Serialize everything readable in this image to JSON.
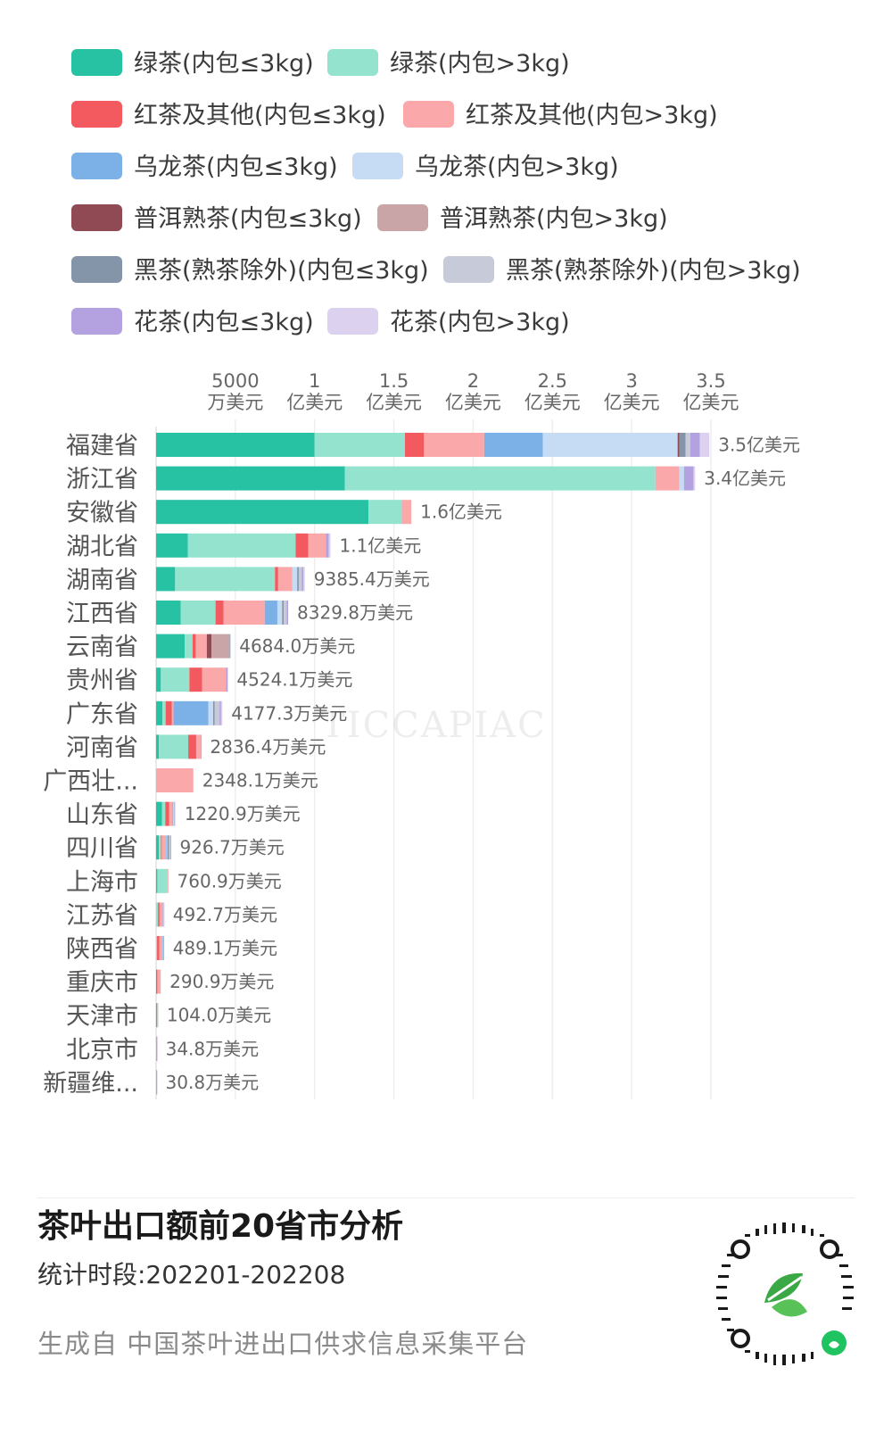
{
  "legend": {
    "items": [
      {
        "label": "绿茶(内包≤3kg)",
        "color": "#26c2a3"
      },
      {
        "label": "绿茶(内包>3kg)",
        "color": "#94e3cf"
      },
      {
        "label": "红茶及其他(内包≤3kg)",
        "color": "#f25a5f"
      },
      {
        "label": "红茶及其他(内包>3kg)",
        "color": "#fba8ab"
      },
      {
        "label": "乌龙茶(内包≤3kg)",
        "color": "#7bb1e6"
      },
      {
        "label": "乌龙茶(内包>3kg)",
        "color": "#c5dcf4"
      },
      {
        "label": "普洱熟茶(内包≤3kg)",
        "color": "#8f4a53"
      },
      {
        "label": "普洱熟茶(内包>3kg)",
        "color": "#c9a5a7"
      },
      {
        "label": "黑茶(熟茶除外)(内包≤3kg)",
        "color": "#8495aa"
      },
      {
        "label": "黑茶(熟茶除外)(内包>3kg)",
        "color": "#c6cad9"
      },
      {
        "label": "花茶(内包≤3kg)",
        "color": "#b4a2e0"
      },
      {
        "label": "花茶(内包>3kg)",
        "color": "#dcd2f0"
      }
    ]
  },
  "chart_data": {
    "type": "bar",
    "orientation": "horizontal",
    "stacked": true,
    "unit": "万美元",
    "xlim": [
      0,
      35000
    ],
    "ticks": [
      {
        "value": 5000,
        "line1": "5000",
        "line2": "万美元"
      },
      {
        "value": 10000,
        "line1": "1",
        "line2": "亿美元"
      },
      {
        "value": 15000,
        "line1": "1.5",
        "line2": "亿美元"
      },
      {
        "value": 20000,
        "line1": "2",
        "line2": "亿美元"
      },
      {
        "value": 25000,
        "line1": "2.5",
        "line2": "亿美元"
      },
      {
        "value": 30000,
        "line1": "3",
        "line2": "亿美元"
      },
      {
        "value": 35000,
        "line1": "3.5",
        "line2": "亿美元"
      }
    ],
    "categories": [
      "福建省",
      "浙江省",
      "安徽省",
      "湖北省",
      "湖南省",
      "江西省",
      "云南省",
      "贵州省",
      "广东省",
      "河南省",
      "广西壮...",
      "山东省",
      "四川省",
      "上海市",
      "江苏省",
      "陕西省",
      "重庆市",
      "天津市",
      "北京市",
      "新疆维..."
    ],
    "totals": [
      "3.5亿美元",
      "3.4亿美元",
      "1.6亿美元",
      "1.1亿美元",
      "9385.4万美元",
      "8329.8万美元",
      "4684.0万美元",
      "4524.1万美元",
      "4177.3万美元",
      "2836.4万美元",
      "2348.1万美元",
      "1220.9万美元",
      "926.7万美元",
      "760.9万美元",
      "492.7万美元",
      "489.1万美元",
      "290.9万美元",
      "104.0万美元",
      "34.8万美元",
      "30.8万美元"
    ],
    "series": [
      {
        "name": "绿茶(内包≤3kg)",
        "color": "#26c2a3",
        "values": [
          10000,
          11900,
          13400,
          2000,
          1200,
          1550,
          1800,
          300,
          400,
          180,
          0,
          380,
          180,
          80,
          0,
          0,
          0,
          60,
          10,
          0
        ]
      },
      {
        "name": "绿茶(内包>3kg)",
        "color": "#94e3cf",
        "values": [
          5700,
          19600,
          2100,
          6800,
          6300,
          2200,
          500,
          1800,
          200,
          1850,
          0,
          200,
          130,
          650,
          120,
          60,
          0,
          30,
          10,
          10
        ]
      },
      {
        "name": "红茶及其他(内包≤3kg)",
        "color": "#f25a5f",
        "values": [
          1200,
          0,
          0,
          800,
          200,
          500,
          200,
          800,
          400,
          500,
          0,
          250,
          50,
          0,
          100,
          150,
          80,
          0,
          5,
          5
        ]
      },
      {
        "name": "红茶及其他(内包>3kg)",
        "color": "#fba8ab",
        "values": [
          3800,
          1500,
          600,
          1100,
          900,
          2600,
          700,
          1500,
          100,
          300,
          2348,
          200,
          250,
          31,
          200,
          180,
          211,
          14,
          5,
          10
        ]
      },
      {
        "name": "乌龙茶(内包≤3kg)",
        "color": "#7bb1e6",
        "values": [
          3700,
          0,
          0,
          0,
          0,
          800,
          0,
          0,
          2200,
          0,
          0,
          50,
          50,
          0,
          20,
          30,
          0,
          0,
          0,
          0
        ]
      },
      {
        "name": "乌龙茶(内包>3kg)",
        "color": "#c5dcf4",
        "values": [
          8500,
          300,
          0,
          0,
          300,
          300,
          0,
          0,
          300,
          0,
          0,
          40,
          50,
          0,
          30,
          30,
          0,
          0,
          0,
          0
        ]
      },
      {
        "name": "普洱熟茶(内包≤3kg)",
        "color": "#8f4a53",
        "values": [
          100,
          0,
          0,
          0,
          0,
          0,
          300,
          0,
          0,
          0,
          0,
          0,
          0,
          0,
          0,
          0,
          0,
          0,
          0,
          0
        ]
      },
      {
        "name": "普洱熟茶(内包>3kg)",
        "color": "#c9a5a7",
        "values": [
          0,
          0,
          0,
          0,
          0,
          0,
          1100,
          0,
          0,
          0,
          0,
          0,
          0,
          0,
          0,
          0,
          0,
          0,
          0,
          0
        ]
      },
      {
        "name": "黑茶(熟茶除外)(内包≤3kg)",
        "color": "#8495aa",
        "values": [
          400,
          0,
          0,
          0,
          100,
          100,
          60,
          0,
          100,
          0,
          0,
          0,
          100,
          0,
          0,
          20,
          0,
          0,
          0,
          0
        ]
      },
      {
        "name": "黑茶(熟茶除外)(内包>3kg)",
        "color": "#c6cad9",
        "values": [
          300,
          0,
          0,
          0,
          185,
          180,
          24,
          0,
          300,
          0,
          0,
          0,
          100,
          0,
          0,
          19,
          0,
          0,
          0,
          0
        ]
      },
      {
        "name": "花茶(内包≤3kg)",
        "color": "#b4a2e0",
        "values": [
          600,
          600,
          0,
          200,
          100,
          100,
          0,
          124,
          100,
          6,
          0,
          50,
          17,
          0,
          11,
          0,
          0,
          0,
          5,
          6
        ]
      },
      {
        "name": "花茶(内包>3kg)",
        "color": "#dcd2f0",
        "values": [
          600,
          100,
          0,
          100,
          100,
          0,
          0,
          0,
          77,
          0,
          0,
          51,
          0,
          0,
          12,
          0,
          0,
          0,
          0,
          0
        ]
      }
    ]
  },
  "footer": {
    "title": "茶叶出口额前20省市分析",
    "period": "统计时段:202201-202208",
    "source": "生成自 中国茶叶进出口供求信息采集平台"
  },
  "watermark": "TICCAPIAC"
}
